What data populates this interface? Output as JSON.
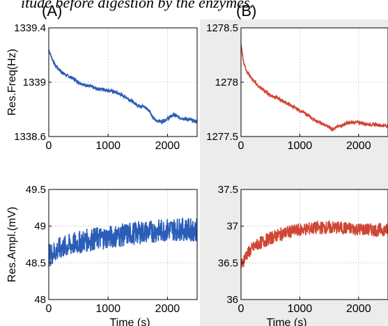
{
  "caption": "itude before digestion by the enzymes.",
  "panel_labels": [
    "(A)",
    "(B)"
  ],
  "chart_data": [
    {
      "type": "line",
      "panel": "(A)",
      "ylabel": "Res.Freq(Hz)",
      "xlabel": "",
      "xlim": [
        0,
        2500
      ],
      "ylim": [
        1338.6,
        1339.4
      ],
      "xticks": [
        "0",
        "1000",
        "2000"
      ],
      "yticks": [
        "1338.6",
        "1339",
        "1339.4"
      ],
      "grid": true,
      "color": "#2a5db8",
      "x": [
        0,
        50,
        100,
        200,
        300,
        400,
        500,
        600,
        700,
        800,
        900,
        1000,
        1100,
        1200,
        1300,
        1400,
        1500,
        1600,
        1700,
        1750,
        1800,
        1900,
        2000,
        2100,
        2200,
        2300,
        2400,
        2500
      ],
      "y": [
        1339.24,
        1339.18,
        1339.13,
        1339.08,
        1339.05,
        1339.03,
        1339.0,
        1338.98,
        1338.97,
        1338.95,
        1338.95,
        1338.94,
        1338.93,
        1338.91,
        1338.89,
        1338.86,
        1338.83,
        1338.82,
        1338.79,
        1338.74,
        1338.72,
        1338.71,
        1338.73,
        1338.76,
        1338.74,
        1338.73,
        1338.72,
        1338.71
      ],
      "noise": 0.012
    },
    {
      "type": "line",
      "panel": "(B)",
      "ylabel": "",
      "xlabel": "",
      "xlim": [
        0,
        2500
      ],
      "ylim": [
        1277.5,
        1278.5
      ],
      "xticks": [
        "0",
        "1000",
        "2000"
      ],
      "yticks": [
        "1277.5",
        "1278",
        "1278.5"
      ],
      "grid": true,
      "color": "#cf4634",
      "x": [
        0,
        25,
        50,
        100,
        150,
        200,
        300,
        400,
        500,
        600,
        700,
        800,
        900,
        1000,
        1100,
        1200,
        1300,
        1400,
        1500,
        1550,
        1600,
        1700,
        1800,
        1900,
        2000,
        2100,
        2200,
        2300,
        2400,
        2500
      ],
      "y": [
        1278.35,
        1278.25,
        1278.17,
        1278.1,
        1278.06,
        1278.02,
        1277.96,
        1277.92,
        1277.88,
        1277.86,
        1277.83,
        1277.8,
        1277.77,
        1277.74,
        1277.71,
        1277.67,
        1277.64,
        1277.61,
        1277.59,
        1277.57,
        1277.58,
        1277.6,
        1277.62,
        1277.63,
        1277.63,
        1277.62,
        1277.61,
        1277.61,
        1277.6,
        1277.6
      ],
      "noise": 0.014
    },
    {
      "type": "line",
      "panel": "(A)",
      "ylabel": "Res.Ampl.(mV)",
      "xlabel": "Time (s)",
      "xlim": [
        0,
        2500
      ],
      "ylim": [
        48,
        49.5
      ],
      "xticks": [
        "0",
        "1000",
        "2000"
      ],
      "yticks": [
        "48",
        "48.5",
        "49",
        "49.5"
      ],
      "grid": true,
      "color": "#2a5db8",
      "x": [
        0,
        100,
        200,
        400,
        600,
        800,
        1000,
        1200,
        1400,
        1600,
        1800,
        2000,
        2200,
        2400,
        2500
      ],
      "y": [
        48.6,
        48.65,
        48.7,
        48.75,
        48.8,
        48.83,
        48.85,
        48.87,
        48.9,
        48.92,
        48.93,
        48.95,
        48.96,
        48.95,
        48.95
      ],
      "noise": 0.16
    },
    {
      "type": "line",
      "panel": "(B)",
      "ylabel": "",
      "xlabel": "Time (s)",
      "xlim": [
        0,
        2500
      ],
      "ylim": [
        36,
        37.5
      ],
      "xticks": [
        "0",
        "1000",
        "2000"
      ],
      "yticks": [
        "36",
        "36.5",
        "37",
        "37.5"
      ],
      "grid": true,
      "color": "#cf4634",
      "x": [
        0,
        50,
        100,
        200,
        300,
        400,
        600,
        800,
        1000,
        1200,
        1400,
        1600,
        1800,
        2000,
        2200,
        2400,
        2500
      ],
      "y": [
        36.45,
        36.55,
        36.62,
        36.7,
        36.76,
        36.8,
        36.87,
        36.92,
        36.95,
        36.97,
        36.98,
        36.98,
        36.97,
        36.96,
        36.95,
        36.95,
        36.95
      ],
      "noise": 0.09
    }
  ]
}
